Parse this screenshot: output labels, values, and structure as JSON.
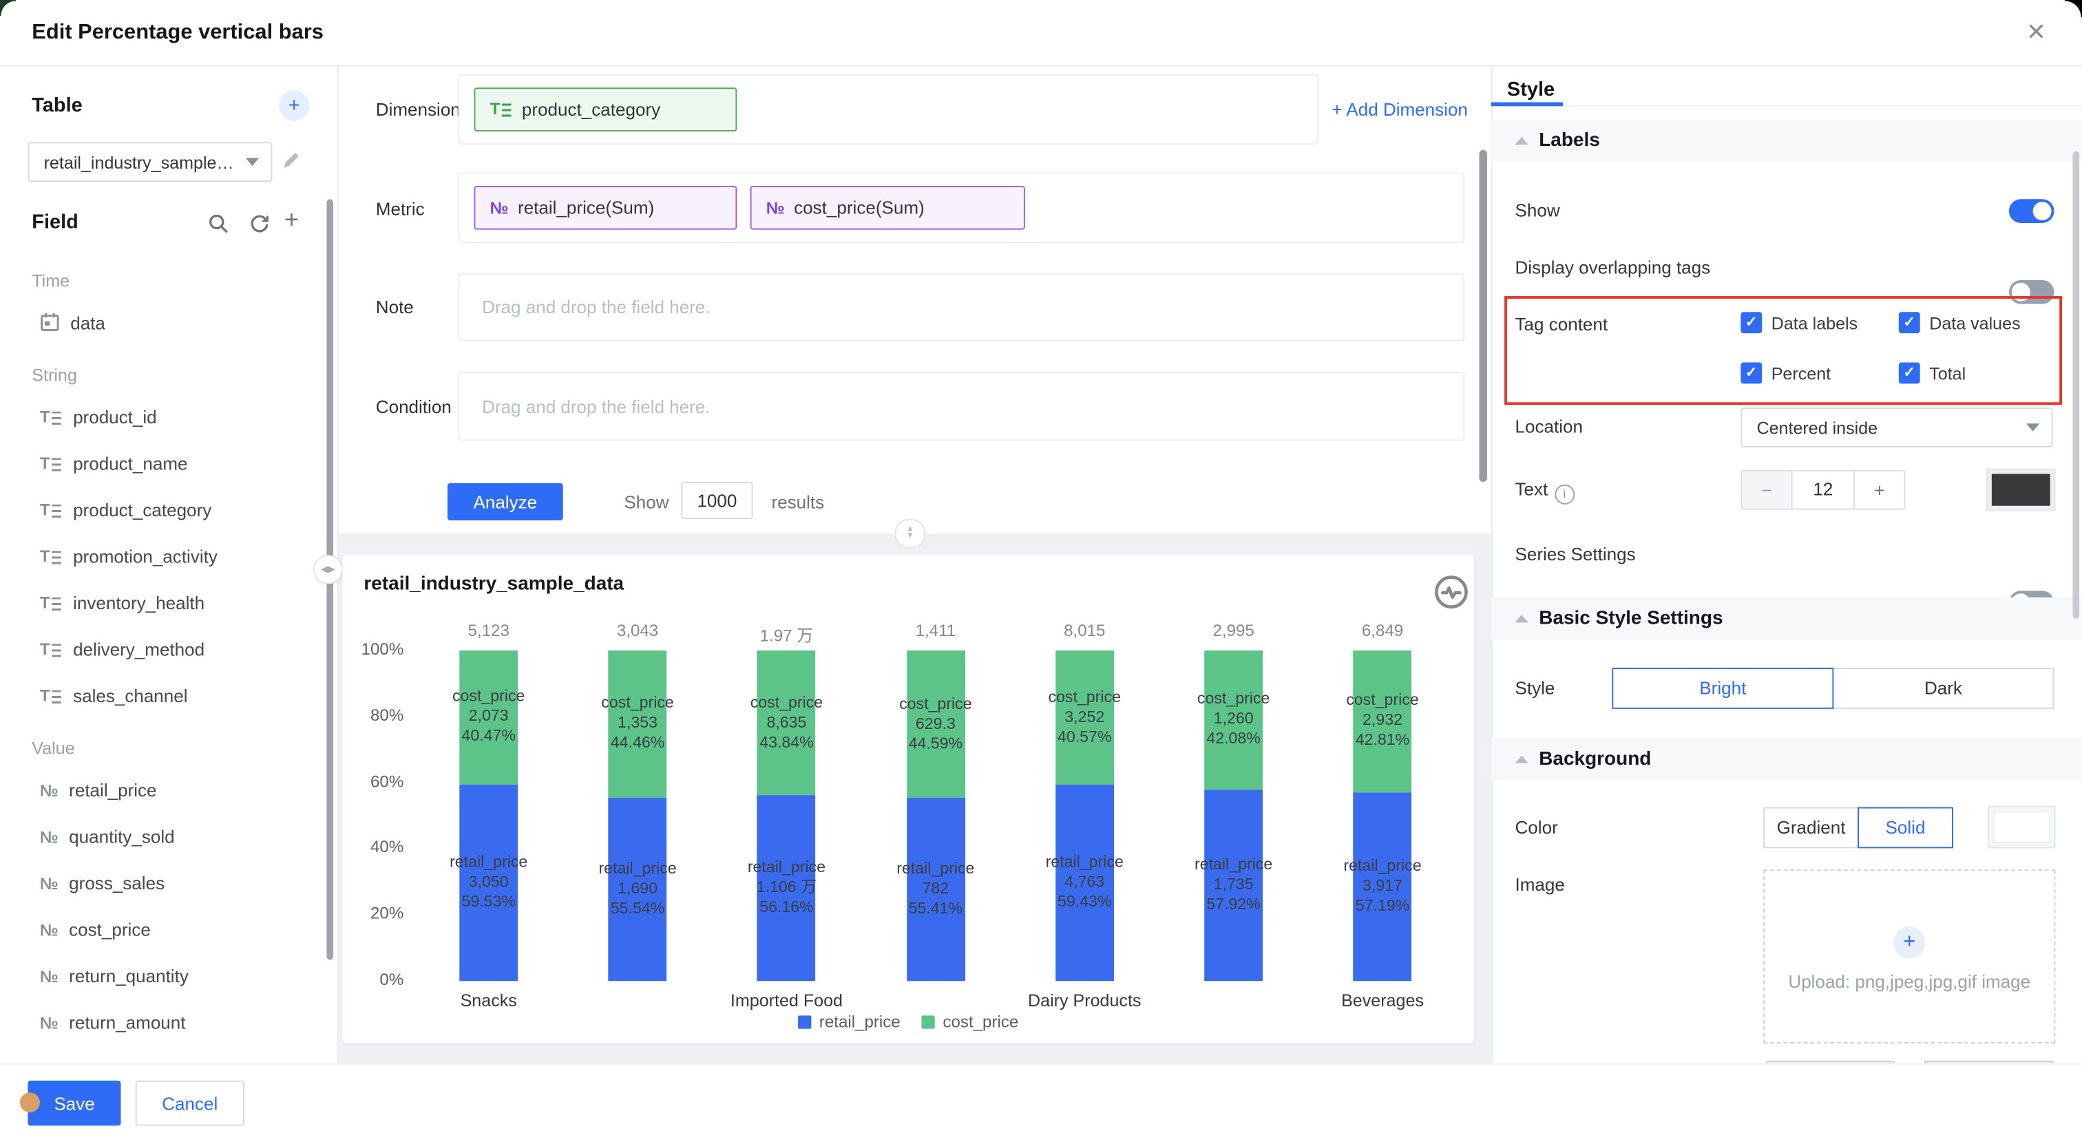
{
  "window": {
    "title": "Edit Percentage vertical bars",
    "close_icon": "✕"
  },
  "sidebar": {
    "table": {
      "label": "Table",
      "add_icon": "+",
      "dataset_value": "retail_industry_sample_dat"
    },
    "field": {
      "label": "Field"
    },
    "groups": [
      {
        "label": "Time",
        "items": [
          {
            "name": "data",
            "icon": "calendar-icon"
          }
        ]
      },
      {
        "label": "String",
        "items": [
          {
            "name": "product_id",
            "icon": "text-field-icon"
          },
          {
            "name": "product_name",
            "icon": "text-field-icon"
          },
          {
            "name": "product_category",
            "icon": "text-field-icon"
          },
          {
            "name": "promotion_activity",
            "icon": "text-field-icon"
          },
          {
            "name": "inventory_health",
            "icon": "text-field-icon"
          },
          {
            "name": "delivery_method",
            "icon": "text-field-icon"
          },
          {
            "name": "sales_channel",
            "icon": "text-field-icon"
          }
        ]
      },
      {
        "label": "Value",
        "items": [
          {
            "name": "retail_price",
            "icon": "number-field-icon"
          },
          {
            "name": "quantity_sold",
            "icon": "number-field-icon"
          },
          {
            "name": "gross_sales",
            "icon": "number-field-icon"
          },
          {
            "name": "cost_price",
            "icon": "number-field-icon"
          },
          {
            "name": "return_quantity",
            "icon": "number-field-icon"
          },
          {
            "name": "return_amount",
            "icon": "number-field-icon"
          }
        ]
      }
    ]
  },
  "query": {
    "dimension": {
      "label": "Dimension",
      "pills": [
        {
          "name": "product_category"
        }
      ],
      "add_label": "+ Add Dimension"
    },
    "metric": {
      "label": "Metric",
      "pills": [
        {
          "name": "retail_price(Sum)"
        },
        {
          "name": "cost_price(Sum)"
        }
      ]
    },
    "note": {
      "label": "Note",
      "placeholder": "Drag and drop the field here."
    },
    "condition": {
      "label": "Condition",
      "placeholder": "Drag and drop the field here."
    },
    "analyze_label": "Analyze",
    "show_label": "Show",
    "show_value": "1000",
    "results_label": "results"
  },
  "chart_data": {
    "type": "bar",
    "subtype": "percent-stacked-vertical",
    "title": "retail_industry_sample_data",
    "categories": [
      "Snacks",
      "",
      "Imported Food",
      "",
      "Dairy Products",
      "",
      "Beverages"
    ],
    "totals": [
      "5,123",
      "3,043",
      "1.97 万",
      "1,411",
      "8,015",
      "2,995",
      "6,849"
    ],
    "series": [
      {
        "name": "retail_price",
        "color": "#3A6AEE",
        "values": [
          "3,050",
          "1,690",
          "1.106 万",
          "782",
          "4,763",
          "1,735",
          "3,917"
        ],
        "percents": [
          59.53,
          55.54,
          56.16,
          55.41,
          59.43,
          57.92,
          57.19
        ]
      },
      {
        "name": "cost_price",
        "color": "#5CC489",
        "values": [
          "2,073",
          "1,353",
          "8,635",
          "629.3",
          "3,252",
          "1,260",
          "2,932"
        ],
        "percents": [
          40.47,
          44.46,
          43.84,
          44.59,
          40.57,
          42.08,
          42.81
        ]
      }
    ],
    "yticks": [
      "100%",
      "80%",
      "60%",
      "40%",
      "20%",
      "0%"
    ],
    "ylim": [
      0,
      100
    ],
    "grid": false,
    "legend": [
      "retail_price",
      "cost_price"
    ],
    "legend_position": "bottom"
  },
  "style_panel": {
    "tab": "Style",
    "labels_section": {
      "title": "Labels",
      "show_label": "Show",
      "show_on": true,
      "overlap_label": "Display overlapping tags",
      "overlap_on": false,
      "tag_content_label": "Tag content",
      "checkboxes": [
        {
          "label": "Data labels",
          "checked": true
        },
        {
          "label": "Data values",
          "checked": true
        },
        {
          "label": "Percent",
          "checked": true
        },
        {
          "label": "Total",
          "checked": true
        }
      ],
      "location_label": "Location",
      "location_value": "Centered inside",
      "text_label": "Text",
      "text_size": "12",
      "text_color": "#39393b",
      "series_label": "Series Settings",
      "series_on": false
    },
    "basic_section": {
      "title": "Basic Style Settings",
      "style_label": "Style",
      "options": [
        "Bright",
        "Dark"
      ],
      "selected": "Bright"
    },
    "background_section": {
      "title": "Background",
      "color_label": "Color",
      "color_options": [
        "Gradient",
        "Solid"
      ],
      "color_selected": "Solid",
      "swatch_color": "#ffffff",
      "image_label": "Image",
      "upload_plus": "+",
      "upload_text": "Upload: png,jpeg,jpg,gif image"
    }
  },
  "footer": {
    "save_label": "Save",
    "cancel_label": "Cancel"
  },
  "colors": {
    "accent_blue": "#2e6bf6",
    "bar_blue": "#3A6AEE",
    "bar_green": "#5CC489",
    "highlight_red": "#e5352c",
    "chart_section_bg": "#eef0f4"
  }
}
